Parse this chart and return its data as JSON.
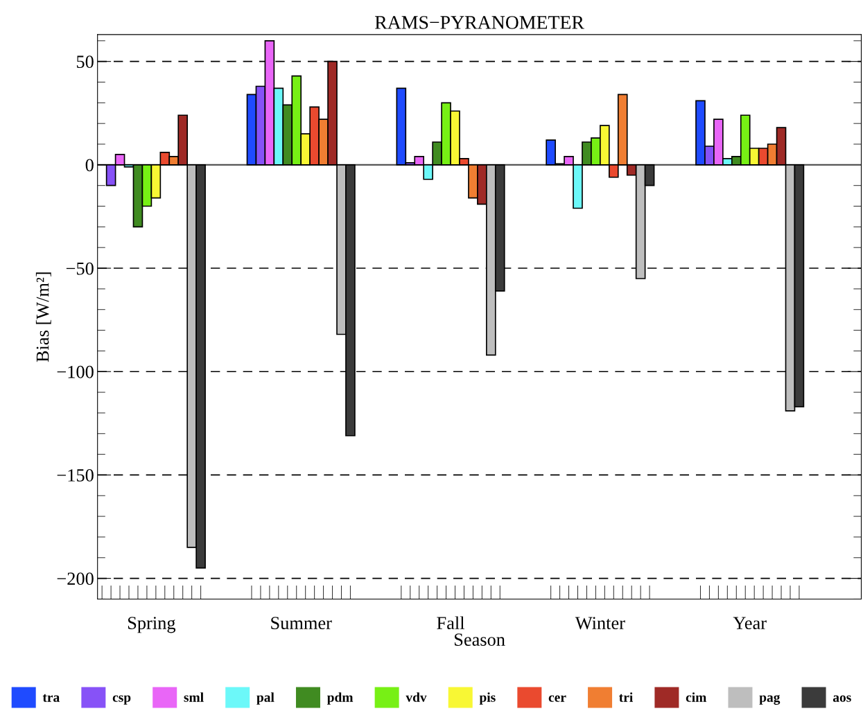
{
  "chart_data": {
    "type": "bar",
    "title": "RAMS−PYRANOMETER",
    "xlabel": "Season",
    "ylabel": "Bias [W/m²]",
    "categories": [
      "Spring",
      "Summer",
      "Fall",
      "Winter",
      "Year"
    ],
    "series": [
      {
        "name": "tra",
        "color": "#1f4bff",
        "values": [
          0,
          34,
          37,
          12,
          31
        ]
      },
      {
        "name": "csp",
        "color": "#8752f7",
        "values": [
          -10,
          38,
          1,
          0.5,
          9
        ]
      },
      {
        "name": "sml",
        "color": "#e966f7",
        "values": [
          5,
          60,
          4,
          4,
          22
        ]
      },
      {
        "name": "pal",
        "color": "#6cf8f9",
        "values": [
          -1,
          37,
          -7,
          -21,
          3
        ]
      },
      {
        "name": "pdm",
        "color": "#408b21",
        "values": [
          -30,
          29,
          11,
          11,
          4
        ]
      },
      {
        "name": "vdv",
        "color": "#77f015",
        "values": [
          -20,
          43,
          30,
          13,
          24
        ]
      },
      {
        "name": "pis",
        "color": "#f8f734",
        "values": [
          -16,
          15,
          26,
          19,
          8
        ]
      },
      {
        "name": "cer",
        "color": "#ea4a2f",
        "values": [
          6,
          28,
          3,
          -6,
          8
        ]
      },
      {
        "name": "tri",
        "color": "#f07e32",
        "values": [
          4,
          22,
          -16,
          34,
          10
        ]
      },
      {
        "name": "cim",
        "color": "#9f2a26",
        "values": [
          24,
          50,
          -19,
          -5,
          18
        ]
      },
      {
        "name": "pag",
        "color": "#bebebe",
        "values": [
          -185,
          -82,
          -92,
          -55,
          -119
        ]
      },
      {
        "name": "aos",
        "color": "#3b3b3b",
        "values": [
          -195,
          -131,
          -61,
          -10,
          -117
        ]
      }
    ],
    "ylim": [
      -210,
      63
    ],
    "yticks": [
      -200,
      -150,
      -100,
      -50,
      50,
      {
        "value": 0,
        "label": "0"
      }
    ],
    "grid": "y",
    "line_style": "dashed",
    "legend": "bottom",
    "ref_lines": [
      {
        "axis": "y",
        "value": 0,
        "color": "#555555",
        "line_style": "solid"
      }
    ]
  }
}
